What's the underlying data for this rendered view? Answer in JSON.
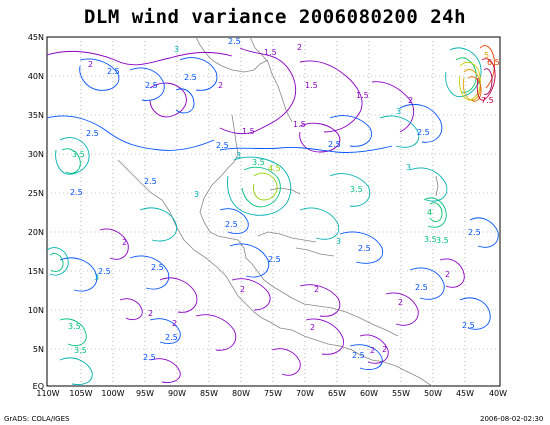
{
  "title": "DLM wind variance 2006080200 24h",
  "footer": {
    "left": "GrADS: COLA/IGES",
    "right": "2006-08-02-02:30"
  },
  "lat_labels": [
    "45N",
    "40N",
    "35N",
    "30N",
    "25N",
    "20N",
    "15N",
    "10N",
    "5N",
    "EQ"
  ],
  "lon_labels": [
    "110W",
    "105W",
    "100W",
    "95W",
    "90W",
    "85W",
    "80W",
    "75W",
    "70W",
    "65W",
    "60W",
    "55W",
    "50W",
    "45W",
    "40W"
  ],
  "contour_labels": [
    {
      "text": "3",
      "color": "#00b0b0"
    },
    {
      "text": "2.5",
      "color": "#0050ff"
    },
    {
      "text": "1.5",
      "color": "#8a00c0"
    },
    {
      "text": "2",
      "color": "#8a00c0"
    },
    {
      "text": "2.5",
      "color": "#0050ff"
    },
    {
      "text": "2",
      "color": "#8a00c0"
    },
    {
      "text": "2.5",
      "color": "#0050ff"
    },
    {
      "text": "2.5",
      "color": "#0050ff"
    },
    {
      "text": "1.5",
      "color": "#8a00c0"
    },
    {
      "text": "2",
      "color": "#8a00c0"
    },
    {
      "text": "1.5",
      "color": "#8a00c0"
    },
    {
      "text": "1.5",
      "color": "#8a00c0"
    },
    {
      "text": "1.5",
      "color": "#8a00c0"
    },
    {
      "text": "2",
      "color": "#8a00c0"
    },
    {
      "text": "2.5",
      "color": "#0050ff"
    },
    {
      "text": "3",
      "color": "#00b0b0"
    },
    {
      "text": "2.5",
      "color": "#0050ff"
    },
    {
      "text": "3.5",
      "color": "#00c080"
    },
    {
      "text": "3",
      "color": "#00b0b0"
    },
    {
      "text": "2.5",
      "color": "#0050ff"
    },
    {
      "text": "3.5",
      "color": "#00c080"
    },
    {
      "text": "4.5",
      "color": "#90d000"
    },
    {
      "text": "2.5",
      "color": "#0050ff"
    },
    {
      "text": "3",
      "color": "#00b0b0"
    },
    {
      "text": "3.5",
      "color": "#00c080"
    },
    {
      "text": "2.5",
      "color": "#0050ff"
    },
    {
      "text": "3",
      "color": "#00b0b0"
    },
    {
      "text": "2.5",
      "color": "#0050ff"
    },
    {
      "text": "2.5",
      "color": "#0050ff"
    },
    {
      "text": "3.5",
      "color": "#00c080"
    },
    {
      "text": "4",
      "color": "#00c060"
    },
    {
      "text": "2.5",
      "color": "#0050ff"
    },
    {
      "text": "2.5",
      "color": "#0050ff"
    },
    {
      "text": "2",
      "color": "#8a00c0"
    },
    {
      "text": "2.5",
      "color": "#0050ff"
    },
    {
      "text": "3",
      "color": "#00b0b0"
    },
    {
      "text": "2.5",
      "color": "#0050ff"
    },
    {
      "text": "2",
      "color": "#8a00c0"
    },
    {
      "text": "2.5",
      "color": "#0050ff"
    },
    {
      "text": "2",
      "color": "#8a00c0"
    },
    {
      "text": "2",
      "color": "#8a00c0"
    },
    {
      "text": "2",
      "color": "#8a00c0"
    },
    {
      "text": "2",
      "color": "#8a00c0"
    },
    {
      "text": "2",
      "color": "#8a00c0"
    },
    {
      "text": "2.5",
      "color": "#0050ff"
    },
    {
      "text": "2",
      "color": "#8a00c0"
    },
    {
      "text": "3.5",
      "color": "#00c080"
    },
    {
      "text": "3.5",
      "color": "#00c080"
    },
    {
      "text": "2.5",
      "color": "#0050ff"
    },
    {
      "text": "3",
      "color": "#00b0b0"
    },
    {
      "text": "2.5",
      "color": "#0050ff"
    },
    {
      "text": "2.5",
      "color": "#0050ff"
    },
    {
      "text": "2",
      "color": "#8a00c0"
    },
    {
      "text": "2",
      "color": "#8a00c0"
    },
    {
      "text": "2.5",
      "color": "#0050ff"
    },
    {
      "text": "5",
      "color": "#e0a000"
    },
    {
      "text": "6.5",
      "color": "#e04000"
    },
    {
      "text": "7.5",
      "color": "#c00040"
    },
    {
      "text": "3.5",
      "color": "#00c080"
    }
  ]
}
